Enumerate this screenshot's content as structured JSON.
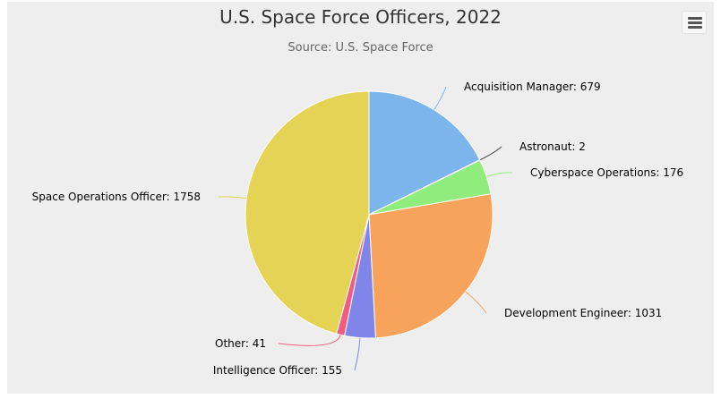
{
  "chart_data": {
    "type": "pie",
    "title": "U.S. Space Force Officers, 2022",
    "subtitle": "Source: U.S. Space Force",
    "slices": [
      {
        "name": "Acquisition Manager",
        "value": 679,
        "color": "#7cb5ec"
      },
      {
        "name": "Astronaut",
        "value": 2,
        "color": "#434348"
      },
      {
        "name": "Cyberspace Operations",
        "value": 176,
        "color": "#90ed7d"
      },
      {
        "name": "Development Engineer",
        "value": 1031,
        "color": "#f7a35c"
      },
      {
        "name": "Intelligence Officer",
        "value": 155,
        "color": "#8085e9"
      },
      {
        "name": "Other",
        "value": 41,
        "color": "#f15c80"
      },
      {
        "name": "Space Operations Officer",
        "value": 1758,
        "color": "#e4d354"
      }
    ]
  },
  "menu": {
    "icon": "hamburger-menu-icon"
  }
}
